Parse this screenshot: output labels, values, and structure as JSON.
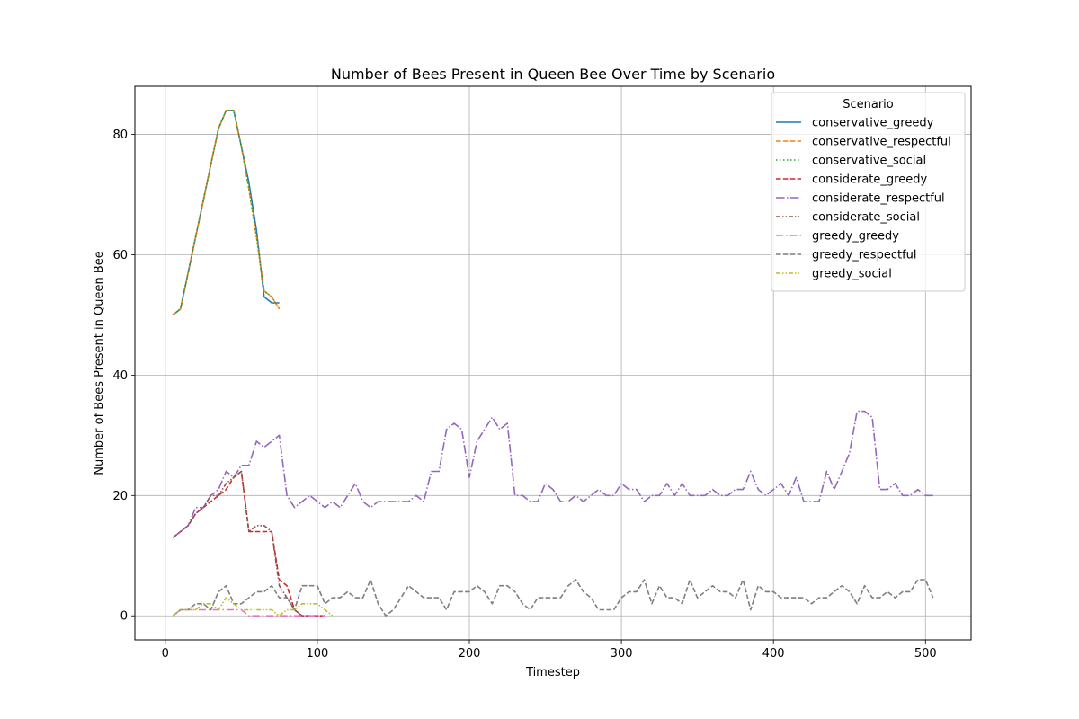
{
  "chart_data": {
    "type": "line",
    "title": "Number of Bees Present in Queen Bee Over Time by Scenario",
    "xlabel": "Timestep",
    "ylabel": "Number of Bees Present in Queen Bee",
    "xlim": [
      -20,
      530
    ],
    "ylim": [
      -4,
      88
    ],
    "xticks": [
      0,
      100,
      200,
      300,
      400,
      500
    ],
    "yticks": [
      0,
      20,
      40,
      60,
      80
    ],
    "grid": true,
    "legend": {
      "title": "Scenario",
      "placement": "top-right"
    },
    "series": [
      {
        "name": "conservative_greedy",
        "color": "#1f77b4",
        "dash": "solid",
        "x": [
          5,
          10,
          15,
          20,
          25,
          30,
          35,
          40,
          45,
          50,
          55,
          60,
          65,
          70,
          75
        ],
        "y": [
          50,
          51,
          57,
          63,
          69,
          75,
          81,
          84,
          84,
          78,
          72,
          64,
          53,
          52,
          52
        ]
      },
      {
        "name": "conservative_respectful",
        "color": "#ff7f0e",
        "dash": "dashed",
        "x": [
          5,
          10,
          15,
          20,
          25,
          30,
          35,
          40,
          45,
          50,
          55,
          60,
          65,
          70,
          75
        ],
        "y": [
          50,
          51,
          57,
          63,
          69,
          75,
          81,
          84,
          84,
          78,
          71,
          63,
          54,
          53,
          51
        ]
      },
      {
        "name": "conservative_social",
        "color": "#2ca02c",
        "dash": "dotted",
        "x": [
          5,
          10,
          15,
          20,
          25,
          30,
          35,
          40,
          45,
          50,
          55,
          60,
          65,
          70,
          75
        ],
        "y": [
          50,
          51,
          57,
          63,
          69,
          75,
          81,
          84,
          84,
          78,
          71,
          63,
          54,
          53,
          51
        ]
      },
      {
        "name": "considerate_greedy",
        "color": "#d62728",
        "dash": "dashed",
        "x": [
          5,
          10,
          15,
          20,
          25,
          30,
          35,
          40,
          45,
          50,
          55,
          60,
          65,
          70,
          75,
          80,
          85,
          90,
          95,
          100,
          105
        ],
        "y": [
          13,
          14,
          15,
          17,
          18,
          19,
          20,
          21,
          23,
          24,
          14,
          14,
          14,
          14,
          6,
          5,
          1,
          0,
          0,
          0,
          0
        ]
      },
      {
        "name": "considerate_respectful",
        "color": "#9467bd",
        "dash": "dashdot",
        "x": [
          5,
          10,
          15,
          20,
          25,
          30,
          35,
          40,
          45,
          50,
          55,
          60,
          65,
          70,
          75,
          80,
          85,
          90,
          95,
          100,
          105,
          110,
          115,
          120,
          125,
          130,
          135,
          140,
          145,
          150,
          155,
          160,
          165,
          170,
          175,
          180,
          185,
          190,
          195,
          200,
          205,
          210,
          215,
          220,
          225,
          230,
          235,
          240,
          245,
          250,
          255,
          260,
          265,
          270,
          275,
          280,
          285,
          290,
          295,
          300,
          305,
          310,
          315,
          320,
          325,
          330,
          335,
          340,
          345,
          350,
          355,
          360,
          365,
          370,
          375,
          380,
          385,
          390,
          395,
          400,
          405,
          410,
          415,
          420,
          425,
          430,
          435,
          440,
          445,
          450,
          455,
          460,
          465,
          470,
          475,
          480,
          485,
          490,
          495,
          500,
          505
        ],
        "y": [
          13,
          14,
          15,
          18,
          18,
          20,
          21,
          24,
          23,
          25,
          25,
          29,
          28,
          29,
          30,
          20,
          18,
          19,
          20,
          19,
          18,
          19,
          18,
          20,
          22,
          19,
          18,
          19,
          19,
          19,
          19,
          19,
          20,
          19,
          24,
          24,
          31,
          32,
          31,
          23,
          29,
          31,
          33,
          31,
          32,
          20,
          20,
          19,
          19,
          22,
          21,
          19,
          19,
          20,
          19,
          20,
          21,
          20,
          20,
          22,
          21,
          21,
          19,
          20,
          20,
          22,
          20,
          22,
          20,
          20,
          20,
          21,
          20,
          20,
          21,
          21,
          24,
          21,
          20,
          21,
          22,
          20,
          23,
          19,
          19,
          19,
          24,
          21,
          24,
          27,
          34,
          34,
          33,
          21,
          21,
          22,
          20,
          20,
          21,
          20,
          20
        ]
      },
      {
        "name": "considerate_social",
        "color": "#8c564b",
        "dash": "dashdotdot",
        "x": [
          5,
          10,
          15,
          20,
          25,
          30,
          35,
          40,
          45,
          50,
          55,
          60,
          65,
          70,
          75,
          80,
          85,
          90,
          95
        ],
        "y": [
          13,
          14,
          15,
          17,
          18,
          20,
          20,
          22,
          23,
          24,
          14,
          15,
          15,
          14,
          5,
          3,
          1,
          0,
          0
        ]
      },
      {
        "name": "greedy_greedy",
        "color": "#e377c2",
        "dash": "longdashdot",
        "x": [
          5,
          10,
          15,
          20,
          25,
          30,
          35,
          40,
          45,
          50,
          55,
          60,
          65,
          70,
          75,
          80,
          85,
          90,
          95,
          100,
          105
        ],
        "y": [
          0,
          1,
          1,
          1,
          1,
          1,
          1,
          1,
          1,
          1,
          0,
          0,
          0,
          0,
          0,
          0,
          0,
          0,
          0,
          0,
          0
        ]
      },
      {
        "name": "greedy_respectful",
        "color": "#7f7f7f",
        "dash": "dashed",
        "x": [
          5,
          10,
          15,
          20,
          25,
          30,
          35,
          40,
          45,
          50,
          55,
          60,
          65,
          70,
          75,
          80,
          85,
          90,
          95,
          100,
          105,
          110,
          115,
          120,
          125,
          130,
          135,
          140,
          145,
          150,
          155,
          160,
          165,
          170,
          175,
          180,
          185,
          190,
          195,
          200,
          205,
          210,
          215,
          220,
          225,
          230,
          235,
          240,
          245,
          250,
          255,
          260,
          265,
          270,
          275,
          280,
          285,
          290,
          295,
          300,
          305,
          310,
          315,
          320,
          325,
          330,
          335,
          340,
          345,
          350,
          355,
          360,
          365,
          370,
          375,
          380,
          385,
          390,
          395,
          400,
          405,
          410,
          415,
          420,
          425,
          430,
          435,
          440,
          445,
          450,
          455,
          460,
          465,
          470,
          475,
          480,
          485,
          490,
          495,
          500,
          505
        ],
        "y": [
          0,
          1,
          1,
          2,
          2,
          1,
          4,
          5,
          2,
          2,
          3,
          4,
          4,
          5,
          3,
          3,
          1,
          5,
          5,
          5,
          2,
          3,
          3,
          4,
          3,
          3,
          6,
          2,
          0,
          1,
          3,
          5,
          4,
          3,
          3,
          3,
          1,
          4,
          4,
          4,
          5,
          4,
          2,
          5,
          5,
          4,
          2,
          1,
          3,
          3,
          3,
          3,
          5,
          6,
          4,
          3,
          1,
          1,
          1,
          3,
          4,
          4,
          6,
          2,
          5,
          3,
          3,
          2,
          6,
          3,
          4,
          5,
          4,
          4,
          3,
          6,
          1,
          5,
          4,
          4,
          3,
          3,
          3,
          3,
          2,
          3,
          3,
          4,
          5,
          4,
          2,
          5,
          3,
          3,
          4,
          3,
          4,
          4,
          6,
          6,
          3
        ]
      },
      {
        "name": "greedy_social",
        "color": "#bcbd22",
        "dash": "dashdotdot",
        "x": [
          5,
          10,
          15,
          20,
          25,
          30,
          35,
          40,
          45,
          50,
          55,
          60,
          65,
          70,
          75,
          80,
          85,
          90,
          95,
          100,
          105,
          110
        ],
        "y": [
          0,
          1,
          1,
          1,
          2,
          2,
          1,
          3,
          2,
          1,
          1,
          1,
          1,
          1,
          0,
          1,
          1,
          2,
          2,
          2,
          1,
          0
        ]
      }
    ]
  }
}
